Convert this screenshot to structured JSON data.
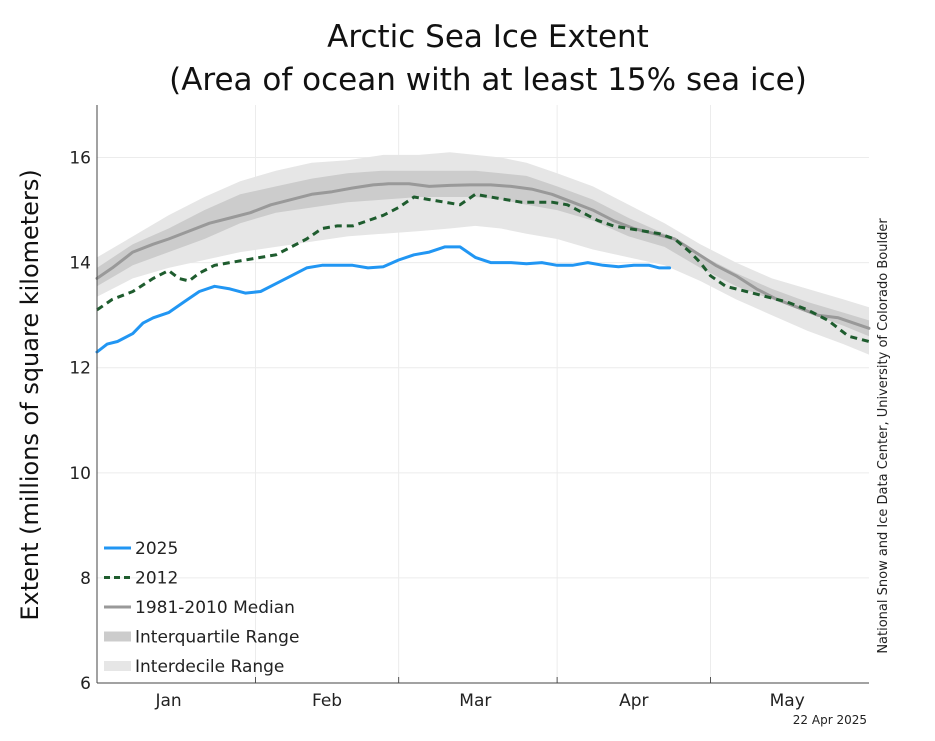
{
  "chart_data": {
    "type": "line",
    "title_lines": [
      "Arctic Sea Ice Extent",
      "(Area of ocean with at least 15% sea ice)"
    ],
    "ylabel": "Extent (millions of square kilometers)",
    "ylim": [
      6,
      17
    ],
    "yticks": [
      6,
      8,
      10,
      12,
      14,
      16
    ],
    "xlim": [
      1,
      152
    ],
    "x_unit": "day of year",
    "month_labels": [
      {
        "label": "Jan",
        "day": 15
      },
      {
        "label": "Feb",
        "day": 46
      },
      {
        "label": "Mar",
        "day": 75
      },
      {
        "label": "Apr",
        "day": 106
      },
      {
        "label": "May",
        "day": 136
      }
    ],
    "month_boundaries": [
      32,
      60,
      91,
      121
    ],
    "grid": true,
    "legend_position": "bottom-left",
    "credit": "National Snow and Ice Data Center, University of Colorado Boulder",
    "date_stamp": "22 Apr 2025",
    "bands": [
      {
        "name": "Interdecile Range",
        "color": "#e6e6e6",
        "x": [
          1,
          8,
          15,
          22,
          29,
          36,
          43,
          50,
          57,
          64,
          70,
          75,
          80,
          85,
          91,
          98,
          105,
          112,
          119,
          126,
          133,
          140,
          147,
          152
        ],
        "lower": [
          13.35,
          13.7,
          13.9,
          14.05,
          14.2,
          14.3,
          14.4,
          14.5,
          14.55,
          14.6,
          14.65,
          14.7,
          14.65,
          14.55,
          14.45,
          14.25,
          14.1,
          13.95,
          13.65,
          13.3,
          13.0,
          12.7,
          12.45,
          12.25
        ],
        "upper": [
          14.1,
          14.5,
          14.9,
          15.25,
          15.55,
          15.75,
          15.9,
          15.95,
          16.05,
          16.05,
          16.1,
          16.05,
          16.0,
          15.9,
          15.7,
          15.45,
          15.1,
          14.75,
          14.35,
          14.0,
          13.7,
          13.5,
          13.3,
          13.15
        ]
      },
      {
        "name": "Interquartile Range",
        "color": "#cccccc",
        "x": [
          1,
          8,
          15,
          22,
          29,
          36,
          43,
          50,
          57,
          64,
          70,
          75,
          80,
          85,
          91,
          98,
          105,
          112,
          119,
          126,
          133,
          140,
          147,
          152
        ],
        "lower": [
          13.55,
          13.95,
          14.2,
          14.45,
          14.75,
          14.95,
          15.05,
          15.15,
          15.2,
          15.25,
          15.25,
          15.25,
          15.2,
          15.1,
          15.0,
          14.8,
          14.5,
          14.3,
          13.9,
          13.55,
          13.3,
          13.05,
          12.8,
          12.6
        ],
        "upper": [
          13.9,
          14.35,
          14.65,
          15.0,
          15.3,
          15.45,
          15.6,
          15.7,
          15.75,
          15.75,
          15.75,
          15.75,
          15.7,
          15.65,
          15.45,
          15.2,
          14.85,
          14.55,
          14.15,
          13.8,
          13.5,
          13.25,
          13.05,
          12.9
        ]
      }
    ],
    "series": [
      {
        "name": "1981-2010 Median",
        "color": "#999999",
        "style": "solid",
        "width": 3,
        "x": [
          1,
          4,
          8,
          12,
          15,
          19,
          23,
          27,
          31,
          35,
          39,
          43,
          47,
          51,
          55,
          58,
          62,
          66,
          70,
          74,
          78,
          82,
          86,
          90,
          94,
          98,
          102,
          106,
          110,
          114,
          118,
          122,
          126,
          130,
          134,
          138,
          142,
          146,
          152
        ],
        "values": [
          13.7,
          13.9,
          14.2,
          14.35,
          14.45,
          14.6,
          14.75,
          14.85,
          14.95,
          15.1,
          15.2,
          15.3,
          15.35,
          15.42,
          15.48,
          15.5,
          15.5,
          15.45,
          15.47,
          15.48,
          15.48,
          15.45,
          15.4,
          15.3,
          15.15,
          15.0,
          14.8,
          14.65,
          14.55,
          14.45,
          14.2,
          13.95,
          13.75,
          13.5,
          13.3,
          13.15,
          13.0,
          12.95,
          12.75
        ]
      },
      {
        "name": "2012",
        "color": "#1e5c2e",
        "style": "dashed",
        "width": 3,
        "x": [
          1,
          4,
          8,
          12,
          15,
          17,
          19,
          21,
          24,
          27,
          30,
          33,
          36,
          39,
          42,
          45,
          48,
          51,
          54,
          57,
          60,
          63,
          66,
          69,
          72,
          75,
          78,
          81,
          84,
          87,
          90,
          93,
          96,
          99,
          102,
          105,
          108,
          111,
          114,
          117,
          119,
          121,
          124,
          128,
          132,
          136,
          140,
          144,
          148,
          152
        ],
        "values": [
          13.1,
          13.3,
          13.45,
          13.7,
          13.85,
          13.7,
          13.65,
          13.8,
          13.95,
          14.0,
          14.05,
          14.1,
          14.15,
          14.3,
          14.45,
          14.65,
          14.7,
          14.7,
          14.8,
          14.9,
          15.05,
          15.25,
          15.2,
          15.15,
          15.1,
          15.3,
          15.25,
          15.2,
          15.15,
          15.15,
          15.15,
          15.1,
          14.95,
          14.8,
          14.7,
          14.65,
          14.6,
          14.55,
          14.45,
          14.2,
          14.0,
          13.75,
          13.55,
          13.45,
          13.35,
          13.25,
          13.1,
          12.9,
          12.6,
          12.5
        ]
      },
      {
        "name": "2025",
        "color": "#2196f3",
        "style": "solid",
        "width": 3,
        "x": [
          1,
          3,
          5,
          8,
          10,
          12,
          15,
          18,
          21,
          24,
          27,
          30,
          33,
          36,
          39,
          42,
          45,
          48,
          51,
          54,
          57,
          60,
          63,
          66,
          69,
          72,
          75,
          78,
          80,
          82,
          85,
          88,
          91,
          94,
          97,
          100,
          103,
          106,
          109,
          111,
          113
        ],
        "values": [
          12.3,
          12.45,
          12.5,
          12.65,
          12.85,
          12.95,
          13.05,
          13.25,
          13.45,
          13.55,
          13.5,
          13.42,
          13.45,
          13.6,
          13.75,
          13.9,
          13.95,
          13.95,
          13.95,
          13.9,
          13.92,
          14.05,
          14.15,
          14.2,
          14.3,
          14.3,
          14.1,
          14.0,
          14.0,
          14.0,
          13.98,
          14.0,
          13.95,
          13.95,
          14.0,
          13.95,
          13.92,
          13.95,
          13.95,
          13.9,
          13.9
        ]
      }
    ],
    "legend": [
      {
        "label": "2025",
        "kind": "line",
        "color": "#2196f3",
        "style": "solid"
      },
      {
        "label": "2012",
        "kind": "line",
        "color": "#1e5c2e",
        "style": "dashed"
      },
      {
        "label": "1981-2010 Median",
        "kind": "line",
        "color": "#999999",
        "style": "solid"
      },
      {
        "label": "Interquartile Range",
        "kind": "band",
        "color": "#cccccc"
      },
      {
        "label": "Interdecile Range",
        "kind": "band",
        "color": "#e6e6e6"
      }
    ]
  }
}
